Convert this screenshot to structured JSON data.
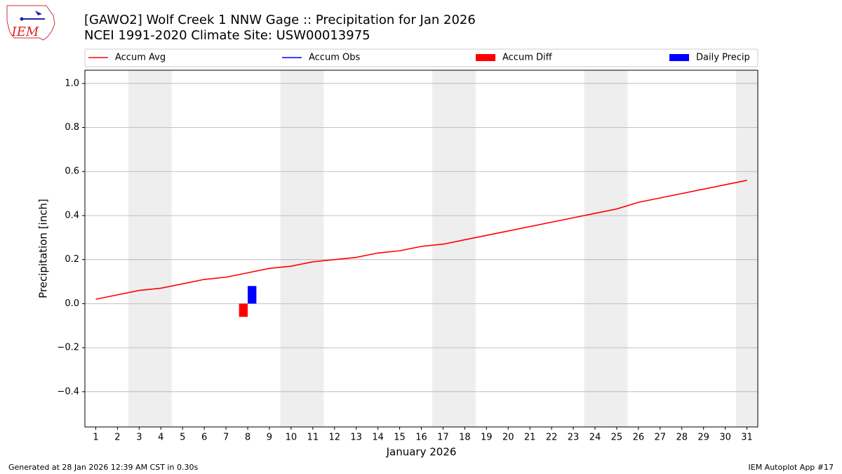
{
  "logo_text": "IEM",
  "footer_left": "Generated at 28 Jan 2026 12:39 AM CST in 0.30s",
  "footer_right": "IEM Autoplot App #17",
  "chart_data": {
    "type": "line",
    "title": "[GAWO2] Wolf Creek 1 NNW Gage :: Precipitation for Jan 2026",
    "subtitle": "NCEI 1991-2020 Climate Site: USW00013975",
    "xlabel": "January 2026",
    "ylabel": "Precipitation [inch]",
    "x": [
      1,
      2,
      3,
      4,
      5,
      6,
      7,
      8,
      9,
      10,
      11,
      12,
      13,
      14,
      15,
      16,
      17,
      18,
      19,
      20,
      21,
      22,
      23,
      24,
      25,
      26,
      27,
      28,
      29,
      30,
      31
    ],
    "series": [
      {
        "name": "Accum Avg",
        "kind": "line",
        "color": "#ff0000",
        "values": [
          0.02,
          0.04,
          0.06,
          0.07,
          0.09,
          0.11,
          0.12,
          0.14,
          0.16,
          0.17,
          0.19,
          0.2,
          0.21,
          0.23,
          0.24,
          0.26,
          0.27,
          0.29,
          0.31,
          0.33,
          0.35,
          0.37,
          0.39,
          0.41,
          0.43,
          0.46,
          0.48,
          0.5,
          0.52,
          0.54,
          0.56
        ]
      },
      {
        "name": "Accum Obs",
        "kind": "line",
        "color": "#0000ff",
        "values": [
          null,
          null,
          null,
          null,
          null,
          null,
          null,
          0.08,
          null,
          null,
          null,
          null,
          null,
          null,
          null,
          null,
          null,
          null,
          null,
          null,
          null,
          null,
          null,
          null,
          null,
          null,
          null,
          null,
          null,
          null,
          null
        ]
      },
      {
        "name": "Accum Diff",
        "kind": "bar",
        "color": "#ff0000",
        "values": [
          null,
          null,
          null,
          null,
          null,
          null,
          null,
          -0.06,
          null,
          null,
          null,
          null,
          null,
          null,
          null,
          null,
          null,
          null,
          null,
          null,
          null,
          null,
          null,
          null,
          null,
          null,
          null,
          null,
          null,
          null,
          null
        ]
      },
      {
        "name": "Daily Precip",
        "kind": "bar",
        "color": "#0000ff",
        "values": [
          null,
          null,
          null,
          null,
          null,
          null,
          null,
          0.08,
          null,
          null,
          null,
          null,
          null,
          null,
          null,
          null,
          null,
          null,
          null,
          null,
          null,
          null,
          null,
          null,
          null,
          null,
          null,
          null,
          null,
          null,
          null
        ]
      }
    ],
    "shaded_spans": [
      [
        2.5,
        4.5
      ],
      [
        9.5,
        11.5
      ],
      [
        16.5,
        18.5
      ],
      [
        23.5,
        25.5
      ],
      [
        30.5,
        31.5
      ]
    ],
    "xlim": [
      0.5,
      31.5
    ],
    "ylim": [
      -0.56,
      1.06
    ],
    "xticks": [
      1,
      2,
      3,
      4,
      5,
      6,
      7,
      8,
      9,
      10,
      11,
      12,
      13,
      14,
      15,
      16,
      17,
      18,
      19,
      20,
      21,
      22,
      23,
      24,
      25,
      26,
      27,
      28,
      29,
      30,
      31
    ],
    "yticks": [
      {
        "value": -0.4,
        "label": "−0.4"
      },
      {
        "value": -0.2,
        "label": "−0.2"
      },
      {
        "value": 0,
        "label": "0.0"
      },
      0.2,
      0.4,
      0.6,
      0.8,
      {
        "value": 1.0,
        "label": "1.0"
      }
    ],
    "grid": true,
    "legend": "top"
  }
}
